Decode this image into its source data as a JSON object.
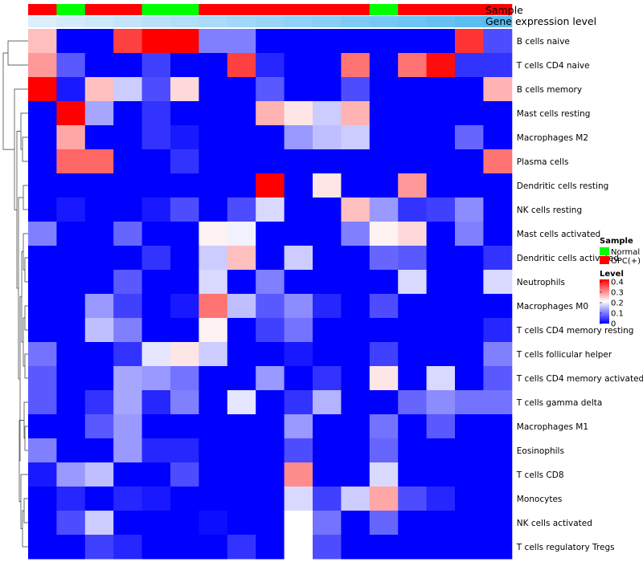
{
  "chart_data": {
    "type": "heatmap",
    "annotation_labels": [
      "Sample",
      "Gene expression level"
    ],
    "rows": [
      "B cells naive",
      "T cells CD4 naive",
      "B cells memory",
      "Mast cells resting",
      "Macrophages M2",
      "Plasma cells",
      "Dendritic cells resting",
      "NK cells resting",
      "Mast cells activated",
      "Dendritic cells activated",
      "Neutrophils",
      "Macrophages M0",
      "T cells CD4 memory resting",
      "T cells follicular helper",
      "T cells CD4 memory activated",
      "T cells gamma delta",
      "Macrophages M1",
      "Eosinophils",
      "T cells CD8",
      "Monocytes",
      "NK cells activated",
      "T cells regulatory  Tregs"
    ],
    "sample_groups": [
      "OPC(+)",
      "Normal",
      "OPC(+)",
      "OPC(+)",
      "Normal",
      "Normal",
      "OPC(+)",
      "OPC(+)",
      "OPC(+)",
      "OPC(+)",
      "OPC(+)",
      "OPC(+)",
      "Normal",
      "OPC(+)",
      "OPC(+)",
      "OPC(+)",
      "OPC(+)"
    ],
    "gene_expression_level": [
      0.0,
      0.06,
      0.12,
      0.18,
      0.24,
      0.3,
      0.36,
      0.42,
      0.48,
      0.54,
      0.6,
      0.66,
      0.72,
      0.78,
      0.84,
      0.9,
      0.96
    ],
    "values": [
      [
        0.25,
        0.0,
        0.0,
        0.35,
        0.4,
        0.4,
        0.1,
        0.1,
        0.0,
        0.0,
        0.0,
        0.0,
        0.0,
        0.0,
        0.0,
        0.36,
        0.06
      ],
      [
        0.28,
        0.07,
        0.0,
        0.0,
        0.05,
        0.0,
        0.0,
        0.35,
        0.03,
        0.0,
        0.0,
        0.31,
        0.0,
        0.31,
        0.39,
        0.04,
        0.04
      ],
      [
        0.4,
        0.02,
        0.25,
        0.16,
        0.06,
        0.23,
        0.0,
        0.0,
        0.07,
        0.0,
        0.0,
        0.06,
        0.0,
        0.0,
        0.0,
        0.0,
        0.26
      ],
      [
        0.0,
        0.4,
        0.13,
        0.0,
        0.04,
        0.0,
        0.0,
        0.0,
        0.26,
        0.22,
        0.16,
        0.26,
        0.0,
        0.0,
        0.0,
        0.0,
        0.0
      ],
      [
        0.0,
        0.27,
        0.0,
        0.0,
        0.04,
        0.02,
        0.0,
        0.0,
        0.0,
        0.12,
        0.15,
        0.16,
        0.0,
        0.0,
        0.0,
        0.08,
        0.0
      ],
      [
        0.0,
        0.32,
        0.32,
        0.0,
        0.0,
        0.04,
        0.0,
        0.0,
        0.0,
        0.0,
        0.0,
        0.0,
        0.0,
        0.0,
        0.0,
        0.0,
        0.31
      ],
      [
        0.0,
        0.0,
        0.0,
        0.0,
        0.0,
        0.0,
        0.0,
        0.0,
        0.4,
        0.0,
        0.22,
        0.0,
        0.0,
        0.28,
        0.0,
        0.0,
        0.0
      ],
      [
        0.0,
        0.02,
        0.0,
        0.0,
        0.02,
        0.06,
        0.0,
        0.06,
        0.17,
        0.0,
        0.0,
        0.25,
        0.12,
        0.04,
        0.05,
        0.11,
        0.0
      ],
      [
        0.1,
        0.0,
        0.0,
        0.08,
        0.0,
        0.0,
        0.21,
        0.19,
        0.0,
        0.0,
        0.0,
        0.1,
        0.21,
        0.23,
        0.0,
        0.1,
        0.0
      ],
      [
        0.0,
        0.0,
        0.0,
        0.0,
        0.04,
        0.0,
        0.16,
        0.25,
        0.0,
        0.16,
        0.0,
        0.0,
        0.08,
        0.07,
        0.0,
        0.0,
        0.04
      ],
      [
        0.0,
        0.0,
        0.0,
        0.07,
        0.0,
        0.0,
        0.17,
        0.0,
        0.1,
        0.0,
        0.0,
        0.0,
        0.0,
        0.17,
        0.0,
        0.0,
        0.17
      ],
      [
        0.0,
        0.0,
        0.12,
        0.05,
        0.0,
        0.02,
        0.31,
        0.15,
        0.07,
        0.11,
        0.03,
        0.0,
        0.06,
        0.0,
        0.0,
        0.0,
        0.0
      ],
      [
        0.0,
        0.0,
        0.15,
        0.1,
        0.0,
        0.0,
        0.21,
        0.0,
        0.05,
        0.09,
        0.0,
        0.0,
        0.0,
        0.0,
        0.0,
        0.0,
        0.03
      ],
      [
        0.09,
        0.0,
        0.0,
        0.04,
        0.18,
        0.22,
        0.16,
        0.0,
        0.0,
        0.02,
        0.0,
        0.0,
        0.05,
        0.0,
        0.0,
        0.0,
        0.1
      ],
      [
        0.07,
        0.0,
        0.0,
        0.13,
        0.12,
        0.09,
        0.0,
        0.0,
        0.12,
        0.0,
        0.04,
        0.0,
        0.22,
        0.0,
        0.17,
        0.0,
        0.07
      ],
      [
        0.07,
        0.0,
        0.04,
        0.13,
        0.03,
        0.1,
        0.0,
        0.18,
        0.0,
        0.04,
        0.14,
        0.0,
        0.0,
        0.08,
        0.11,
        0.09,
        0.09
      ],
      [
        0.0,
        0.0,
        0.07,
        0.12,
        0.0,
        0.0,
        0.0,
        0.0,
        0.0,
        0.12,
        0.0,
        0.0,
        0.09,
        0.0,
        0.07,
        0.0,
        0.0
      ],
      [
        0.1,
        0.0,
        0.0,
        0.12,
        0.03,
        0.03,
        0.0,
        0.0,
        0.0,
        0.06,
        0.0,
        0.0,
        0.08,
        0.0,
        0.0,
        0.0,
        0.0
      ],
      [
        0.02,
        0.12,
        0.15,
        0.0,
        0.0,
        0.06,
        0.0,
        0.0,
        0.0,
        0.29,
        0.0,
        0.0,
        0.17,
        0.0,
        0.0,
        0.0,
        0.0
      ],
      [
        0.0,
        0.03,
        0.0,
        0.03,
        0.02,
        0.0,
        0.0,
        0.0,
        0.0,
        0.17,
        0.05,
        0.16,
        0.27,
        0.06,
        0.03,
        0.0,
        0.0
      ],
      [
        0.0,
        0.06,
        0.16,
        0.0,
        0.0,
        0.0,
        0.01,
        0.0,
        0.0,
        0.2,
        0.09,
        0.0,
        0.08,
        0.0,
        0.0,
        0.0,
        0.0
      ],
      [
        0.0,
        0.0,
        0.05,
        0.03,
        0.0,
        0.0,
        0.0,
        0.04,
        0.0,
        0.2,
        0.06,
        0.0,
        0.0,
        0.0,
        0.0,
        0.0,
        0.0
      ]
    ],
    "legend": {
      "sample_title": "Sample",
      "sample_items": [
        {
          "label": "Normal",
          "color": "#00ff00"
        },
        {
          "label": "OPC(+)",
          "color": "#ff0000"
        }
      ],
      "level_title": "Level",
      "level_ticks": [
        "0.4",
        "0.3",
        "0.2",
        "0.1",
        "0"
      ],
      "position": "right"
    },
    "colors": {
      "low": "#0000ff",
      "mid": "#ffffff",
      "high": "#ff0000",
      "normal": "#00ff00",
      "opc": "#ff0000",
      "expr_low": "#ddeefc",
      "expr_high": "#4fb8f0"
    },
    "scale_range": [
      0,
      0.4
    ]
  }
}
